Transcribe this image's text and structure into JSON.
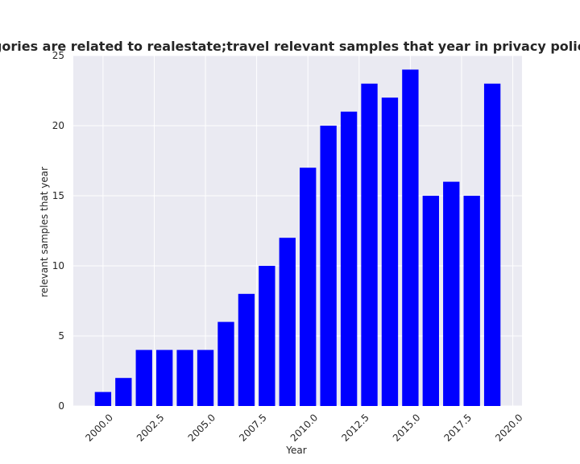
{
  "chart_data": {
    "type": "bar",
    "title": "When categories are related to realestate;travel relevant samples that year in privacy policies by Year",
    "xlabel": "Year",
    "ylabel": "relevant samples that year",
    "x": [
      2000,
      2001,
      2002,
      2003,
      2004,
      2005,
      2006,
      2007,
      2008,
      2009,
      2010,
      2011,
      2012,
      2013,
      2014,
      2015,
      2016,
      2017,
      2018,
      2019
    ],
    "values": [
      1,
      2,
      4,
      4,
      4,
      4,
      6,
      8,
      10,
      12,
      17,
      20,
      21,
      23,
      22,
      24,
      15,
      16,
      15,
      23
    ],
    "xlim": [
      1998.55,
      2020.45
    ],
    "ylim": [
      0,
      25
    ],
    "x_ticks": [
      "2000.0",
      "2002.5",
      "2005.0",
      "2007.5",
      "2010.0",
      "2012.5",
      "2015.0",
      "2017.5",
      "2020.0"
    ],
    "x_tick_values": [
      2000,
      2002.5,
      2005,
      2007.5,
      2010,
      2012.5,
      2015,
      2017.5,
      2020
    ],
    "y_ticks": [
      "0",
      "5",
      "10",
      "15",
      "20",
      "25"
    ],
    "y_tick_values": [
      0,
      5,
      10,
      15,
      20,
      25
    ],
    "grid": true,
    "bar_color": "#0000ff",
    "background": "#eaeaf2"
  }
}
